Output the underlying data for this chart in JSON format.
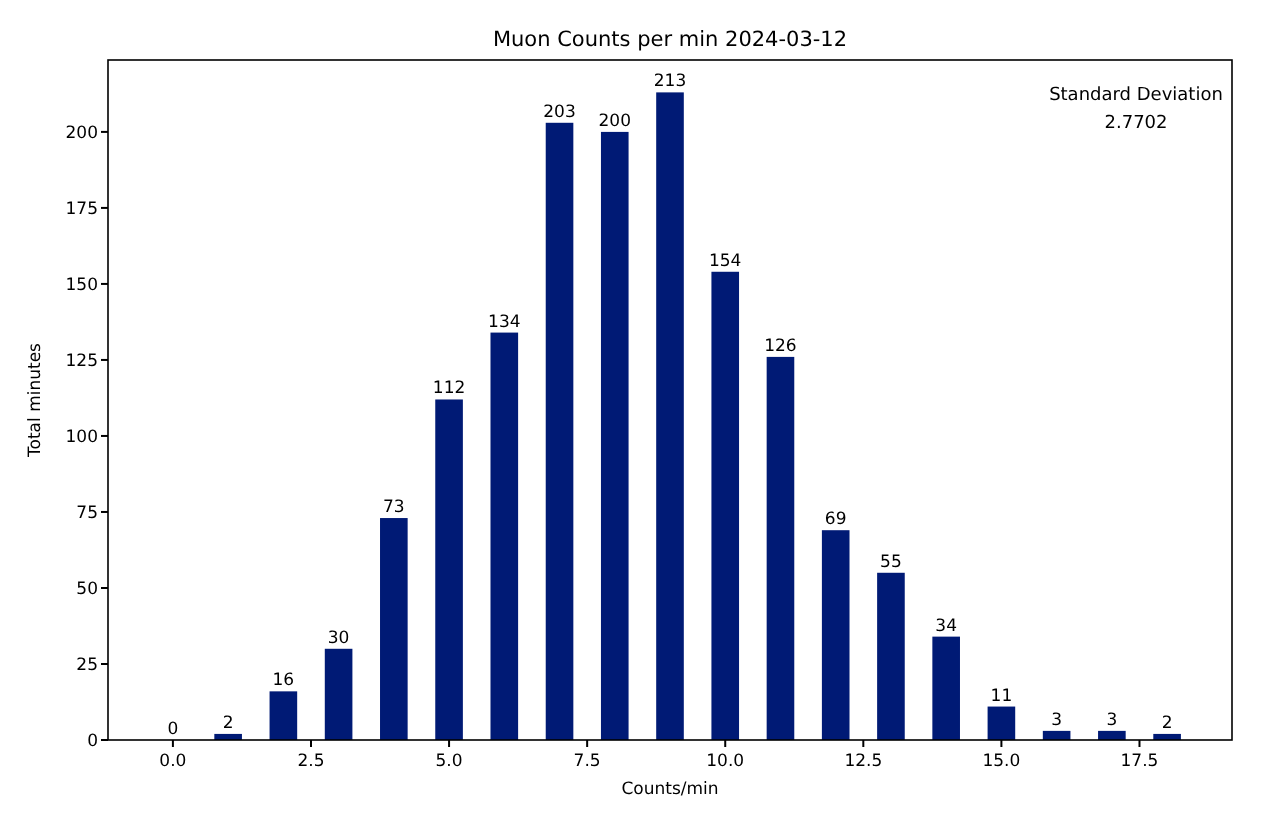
{
  "chart_data": {
    "type": "bar",
    "title": "Muon Counts per min 2024-03-12",
    "xlabel": "Counts/min",
    "ylabel": "Total minutes",
    "x": [
      0,
      1,
      2,
      3,
      4,
      5,
      6,
      7,
      8,
      9,
      10,
      11,
      12,
      13,
      14,
      15,
      16,
      17,
      18
    ],
    "values": [
      0,
      2,
      16,
      30,
      73,
      112,
      134,
      203,
      200,
      213,
      154,
      126,
      69,
      55,
      34,
      11,
      3,
      3,
      2
    ],
    "color": "#001a75",
    "data_labels": true,
    "grid": false,
    "xlim": [
      -1.175,
      19.175
    ],
    "xticks": [
      {
        "value": 0,
        "label": "0.0"
      },
      {
        "value": 2.5,
        "label": "2.5"
      },
      {
        "value": 5,
        "label": "5.0"
      },
      {
        "value": 7.5,
        "label": "7.5"
      },
      {
        "value": 10,
        "label": "10.0"
      },
      {
        "value": 12.5,
        "label": "12.5"
      },
      {
        "value": 15,
        "label": "15.0"
      },
      {
        "value": 17.5,
        "label": "17.5"
      }
    ],
    "ylim": [
      0,
      223.65
    ],
    "yticks": [
      0,
      25,
      50,
      75,
      100,
      125,
      150,
      175,
      200
    ],
    "annotations": [
      "Standard Deviation\n2.7702"
    ]
  }
}
